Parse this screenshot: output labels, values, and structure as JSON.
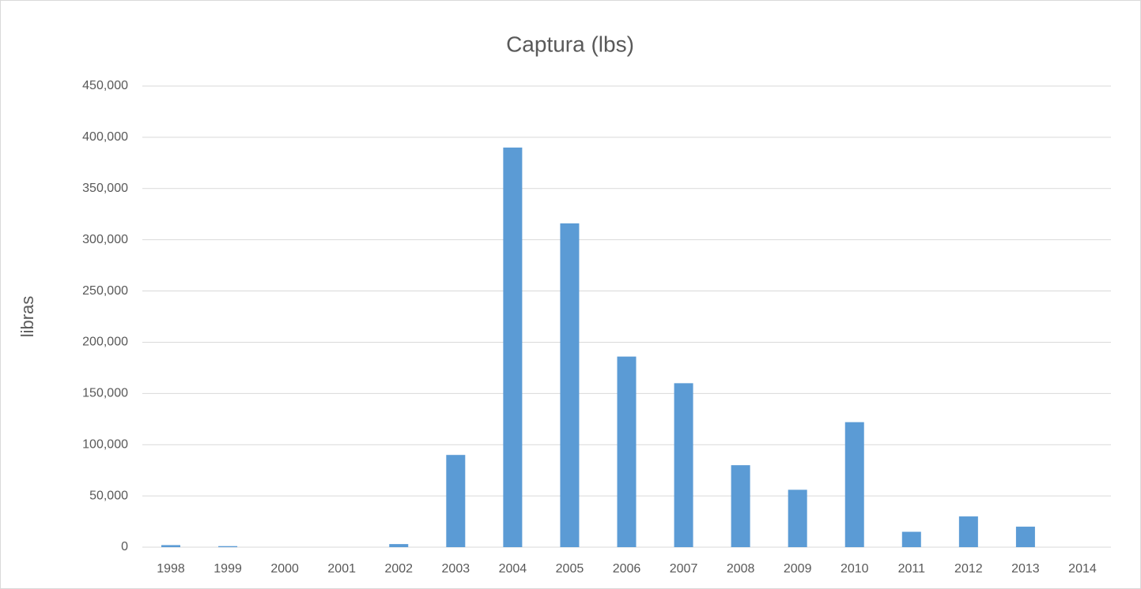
{
  "chart_data": {
    "type": "bar",
    "title": "Captura (lbs)",
    "y_label": "libras",
    "categories": [
      "1998",
      "1999",
      "2000",
      "2001",
      "2002",
      "2003",
      "2004",
      "2005",
      "2006",
      "2007",
      "2008",
      "2009",
      "2010",
      "2011",
      "2012",
      "2013",
      "2014"
    ],
    "values": [
      2000,
      1000,
      0,
      0,
      3000,
      90000,
      390000,
      316000,
      186000,
      160000,
      80000,
      56000,
      122000,
      15000,
      30000,
      20000,
      0
    ],
    "color": "#5b9bd5",
    "ylim": [
      0,
      450000
    ],
    "yticks": [
      0,
      {
        "value": 50000,
        "label": "50,000"
      },
      {
        "value": 100000,
        "label": "100,000"
      },
      {
        "value": 150000,
        "label": "150,000"
      },
      {
        "value": 200000,
        "label": "200,000"
      },
      {
        "value": 250000,
        "label": "250,000"
      },
      {
        "value": 300000,
        "label": "300,000"
      },
      {
        "value": 350000,
        "label": "350,000"
      },
      {
        "value": 400000,
        "label": "400,000"
      },
      {
        "value": 450000,
        "label": "450,000"
      }
    ],
    "grid": true
  }
}
